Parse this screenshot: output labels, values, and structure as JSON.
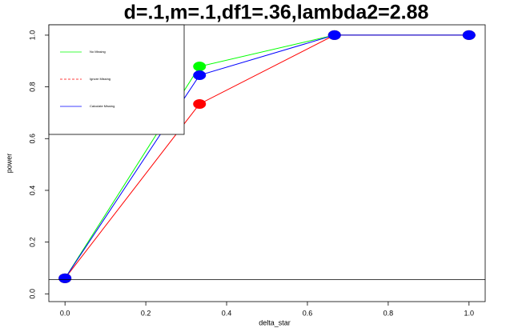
{
  "chart_data": {
    "type": "line",
    "title": "d=.1,m=.1,df1=.36,lambda2=2.88",
    "x_label": "delta_star",
    "y_label": "power",
    "x": [
      0,
      0.333,
      0.667,
      1
    ],
    "series": [
      {
        "name": "No Missing",
        "color": "#00ff00",
        "dash": false,
        "values": [
          0.06,
          0.879,
          1,
          1
        ]
      },
      {
        "name": "Ignore Missing",
        "color": "#ff0000",
        "dash": true,
        "values": [
          0.06,
          0.734,
          1,
          1
        ]
      },
      {
        "name": "Calculate Missing",
        "color": "#0000ff",
        "dash": false,
        "values": [
          0.06,
          0.845,
          1,
          1
        ]
      }
    ],
    "hline": 0.055,
    "xlim": [
      -0.04,
      1.04
    ],
    "ylim": [
      -0.03,
      1.04
    ],
    "xticks": [
      {
        "value": 0,
        "label": "0.0"
      },
      {
        "value": 0.2,
        "label": "0.2"
      },
      {
        "value": 0.4,
        "label": "0.4"
      },
      {
        "value": 0.6,
        "label": "0.6"
      },
      {
        "value": 0.8,
        "label": "0.8"
      },
      {
        "value": 1,
        "label": "1.0"
      }
    ],
    "yticks": [
      {
        "value": 0,
        "label": "0.0"
      },
      {
        "value": 0.2,
        "label": "0.2"
      },
      {
        "value": 0.4,
        "label": "0.4"
      },
      {
        "value": 0.6,
        "label": "0.6"
      },
      {
        "value": 0.8,
        "label": "0.8"
      },
      {
        "value": 1,
        "label": "1.0"
      }
    ],
    "legend": "top-left"
  }
}
